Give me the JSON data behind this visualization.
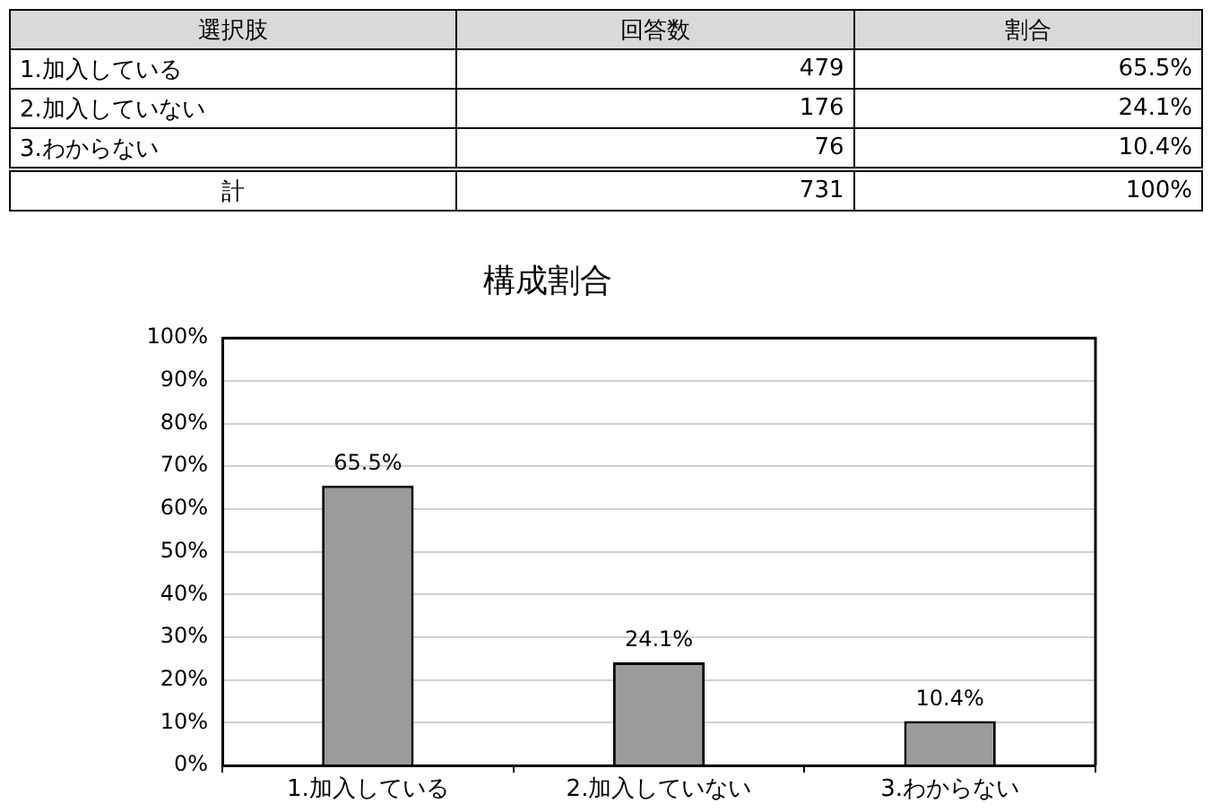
{
  "chart_data": [
    {
      "type": "other",
      "xlabel": "選択肢",
      "categories": [
        "1.加入している",
        "2.加入していない",
        "3.わからない",
        "計"
      ],
      "data_labels": true,
      "series": [
        {
          "name": "回答数",
          "values": [
            479,
            176,
            76,
            731
          ]
        },
        {
          "name": "割合",
          "values": [
            65.5,
            24.1,
            10.4,
            100
          ],
          "value_labels": [
            "65.5%",
            "24.1%",
            "10.4%",
            "100%"
          ]
        }
      ]
    },
    {
      "type": "bar",
      "title": "構成割合",
      "categories": [
        "1.加入している",
        "2.加入していない",
        "3.わからない"
      ],
      "values": [
        65.5,
        24.1,
        10.4
      ],
      "color": "#9b9b9b",
      "value_labels": [
        "65.5%",
        "24.1%",
        "10.4%"
      ],
      "ylim": [
        0,
        100
      ],
      "yticks": [
        {
          "value": 0,
          "label": "0%"
        },
        {
          "value": 10,
          "label": "10%"
        },
        {
          "value": 20,
          "label": "20%"
        },
        {
          "value": 30,
          "label": "30%"
        },
        {
          "value": 40,
          "label": "40%"
        },
        {
          "value": 50,
          "label": "50%"
        },
        {
          "value": 60,
          "label": "60%"
        },
        {
          "value": 70,
          "label": "70%"
        },
        {
          "value": 80,
          "label": "80%"
        },
        {
          "value": 90,
          "label": "90%"
        },
        {
          "value": 100,
          "label": "100%"
        }
      ],
      "grid": "y"
    }
  ]
}
